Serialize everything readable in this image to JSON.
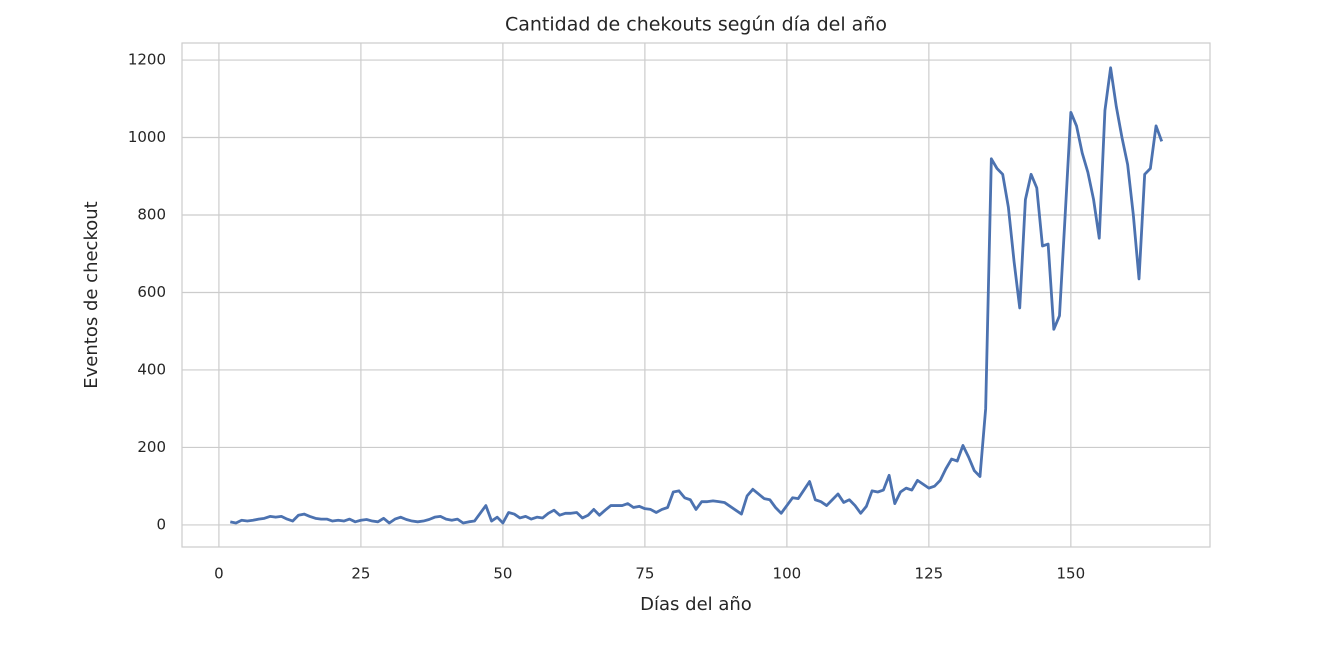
{
  "chart_data": {
    "type": "line",
    "title": "Cantidad de chekouts según día del año",
    "xlabel": "Días del año",
    "ylabel": "Eventos de checkout",
    "x": [
      2,
      3,
      4,
      5,
      6,
      7,
      8,
      9,
      10,
      11,
      12,
      13,
      14,
      15,
      16,
      17,
      18,
      19,
      20,
      21,
      22,
      23,
      24,
      25,
      26,
      27,
      28,
      29,
      30,
      31,
      32,
      33,
      34,
      35,
      36,
      37,
      38,
      39,
      40,
      41,
      42,
      43,
      44,
      45,
      46,
      47,
      48,
      49,
      50,
      51,
      52,
      53,
      54,
      55,
      56,
      57,
      58,
      59,
      60,
      61,
      62,
      63,
      64,
      65,
      66,
      67,
      68,
      69,
      70,
      71,
      72,
      73,
      74,
      75,
      76,
      77,
      78,
      79,
      80,
      81,
      82,
      83,
      84,
      85,
      86,
      87,
      88,
      89,
      90,
      91,
      92,
      93,
      94,
      95,
      96,
      97,
      98,
      99,
      100,
      101,
      102,
      103,
      104,
      105,
      106,
      107,
      108,
      109,
      110,
      111,
      112,
      113,
      114,
      115,
      116,
      117,
      118,
      119,
      120,
      121,
      122,
      123,
      124,
      125,
      126,
      127,
      128,
      129,
      130,
      131,
      132,
      133,
      134,
      135,
      136,
      137,
      138,
      139,
      140,
      141,
      142,
      143,
      144,
      145,
      146,
      147,
      148,
      149,
      150,
      151,
      152,
      153,
      154,
      155,
      156,
      157,
      158,
      159,
      160,
      161,
      162,
      163,
      164,
      165,
      166
    ],
    "series": [
      {
        "color": "#4c72b0",
        "values": [
          8,
          5,
          12,
          10,
          12,
          15,
          17,
          22,
          20,
          22,
          15,
          10,
          25,
          28,
          22,
          17,
          15,
          15,
          10,
          12,
          10,
          15,
          8,
          12,
          14,
          10,
          8,
          17,
          5,
          15,
          20,
          14,
          10,
          8,
          10,
          14,
          20,
          22,
          15,
          12,
          15,
          5,
          8,
          10,
          30,
          50,
          10,
          20,
          5,
          32,
          28,
          18,
          22,
          15,
          20,
          18,
          30,
          38,
          25,
          30,
          30,
          32,
          18,
          25,
          40,
          25,
          38,
          50,
          50,
          50,
          55,
          45,
          48,
          42,
          40,
          32,
          40,
          45,
          85,
          88,
          70,
          65,
          40,
          60,
          60,
          62,
          60,
          58,
          48,
          38,
          28,
          75,
          92,
          80,
          68,
          65,
          45,
          30,
          50,
          70,
          68,
          90,
          112,
          65,
          60,
          50,
          65,
          80,
          58,
          65,
          50,
          30,
          48,
          88,
          85,
          90,
          128,
          55,
          85,
          95,
          90,
          115,
          105,
          95,
          100,
          115,
          145,
          170,
          165,
          205,
          175,
          140,
          125,
          300,
          945,
          920,
          905,
          820,
          680,
          560,
          840,
          905,
          870,
          720,
          725,
          505,
          540,
          800,
          1065,
          1030,
          960,
          910,
          840,
          740,
          1070,
          1180,
          1080,
          1000,
          930,
          800,
          635,
          905,
          920,
          1030,
          990
        ]
      }
    ],
    "xlim": [
      -6.5,
      174.5
    ],
    "ylim": [
      -57,
      1244
    ],
    "xticks": [
      0,
      25,
      50,
      75,
      100,
      125,
      150
    ],
    "yticks": [
      0,
      200,
      400,
      600,
      800,
      1000,
      1200
    ],
    "grid": true
  }
}
